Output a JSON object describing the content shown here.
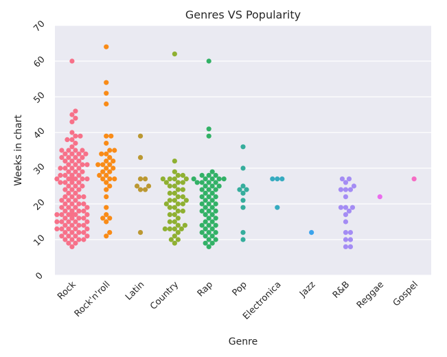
{
  "chart_data": {
    "type": "swarm",
    "title": "Genres VS Popularity",
    "x_label": "Genre",
    "y_label": "Weeks in chart",
    "categories": [
      "Rock",
      "Rock'n'roll",
      "Latin",
      "Country",
      "Rap",
      "Pop",
      "Electronica",
      "Jazz",
      "R&B",
      "Reggae",
      "Gospel"
    ],
    "colors": [
      "#f77189",
      "#f98b17",
      "#bb9832",
      "#8fb032",
      "#32b166",
      "#35ad9c",
      "#36abc0",
      "#3ba3ec",
      "#a48cf4",
      "#ea6ced",
      "#f56cc4"
    ],
    "values": [
      [
        8,
        9,
        9,
        10,
        10,
        10,
        10,
        11,
        11,
        11,
        11,
        12,
        12,
        12,
        12,
        13,
        13,
        13,
        13,
        13,
        14,
        14,
        14,
        14,
        15,
        15,
        15,
        15,
        15,
        16,
        16,
        16,
        16,
        16,
        17,
        17,
        17,
        17,
        17,
        17,
        18,
        18,
        18,
        18,
        18,
        18,
        19,
        19,
        19,
        19,
        20,
        20,
        20,
        20,
        21,
        21,
        21,
        22,
        22,
        22,
        22,
        23,
        23,
        24,
        24,
        24,
        25,
        25,
        25,
        26,
        26,
        26,
        26,
        27,
        27,
        27,
        27,
        27,
        27,
        27,
        28,
        28,
        28,
        28,
        28,
        28,
        29,
        29,
        29,
        30,
        30,
        30,
        30,
        31,
        31,
        31,
        31,
        32,
        32,
        32,
        33,
        33,
        33,
        33,
        34,
        34,
        34,
        34,
        35,
        35,
        35,
        35,
        36,
        37,
        38,
        38,
        39,
        39,
        40,
        43,
        44,
        45,
        46,
        60
      ],
      [
        11,
        12,
        15,
        16,
        16,
        17,
        19,
        22,
        24,
        25,
        26,
        27,
        27,
        27,
        28,
        28,
        29,
        29,
        30,
        30,
        31,
        31,
        31,
        32,
        32,
        33,
        34,
        34,
        35,
        35,
        37,
        39,
        39,
        48,
        51,
        54,
        64
      ],
      [
        12,
        24,
        24,
        25,
        25,
        27,
        27,
        33,
        39
      ],
      [
        9,
        10,
        10,
        11,
        12,
        13,
        13,
        13,
        13,
        14,
        14,
        15,
        15,
        16,
        17,
        17,
        18,
        18,
        19,
        19,
        20,
        20,
        20,
        21,
        21,
        21,
        22,
        22,
        23,
        23,
        24,
        24,
        25,
        25,
        26,
        26,
        26,
        27,
        27,
        27,
        27,
        28,
        28,
        29,
        32,
        62
      ],
      [
        8,
        9,
        9,
        10,
        10,
        11,
        11,
        12,
        12,
        12,
        13,
        13,
        14,
        14,
        14,
        15,
        15,
        16,
        16,
        17,
        17,
        18,
        18,
        18,
        19,
        19,
        20,
        20,
        20,
        21,
        21,
        22,
        22,
        22,
        23,
        23,
        24,
        24,
        24,
        25,
        25,
        25,
        26,
        26,
        26,
        26,
        27,
        27,
        27,
        27,
        27,
        28,
        28,
        28,
        29,
        39,
        41,
        60
      ],
      [
        10,
        12,
        19,
        21,
        23,
        24,
        24,
        25,
        30,
        36
      ],
      [
        19,
        27,
        27,
        27
      ],
      [
        12
      ],
      [
        8,
        8,
        10,
        10,
        12,
        12,
        15,
        17,
        18,
        19,
        19,
        19,
        22,
        24,
        24,
        24,
        25,
        26,
        27,
        27
      ],
      [
        22
      ],
      [
        27
      ]
    ],
    "ylim": [
      0,
      70
    ],
    "yticks": [
      0,
      10,
      20,
      30,
      40,
      50,
      60,
      70
    ],
    "grid": true
  }
}
